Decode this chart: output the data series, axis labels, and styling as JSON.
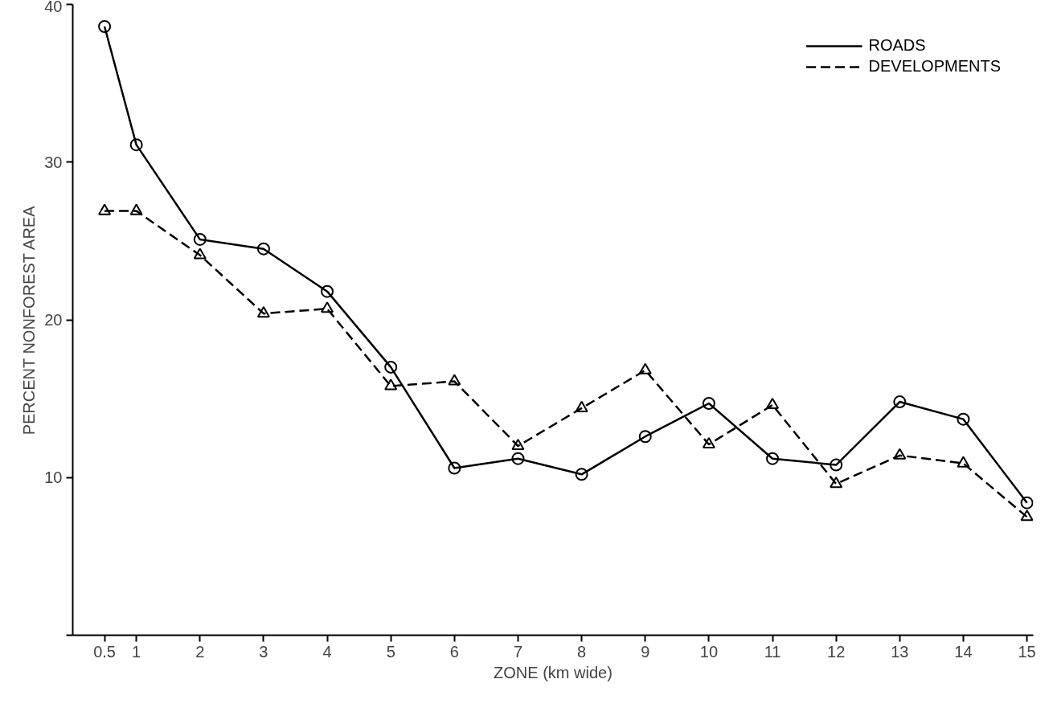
{
  "chart_data": {
    "type": "line",
    "xlabel": "ZONE (km wide)",
    "ylabel": "PERCENT NONFOREST AREA",
    "x": [
      0.5,
      1,
      2,
      3,
      4,
      5,
      6,
      7,
      8,
      9,
      10,
      11,
      12,
      13,
      14,
      15
    ],
    "series": [
      {
        "name": "ROADS",
        "color": "#000000",
        "marker": "circle",
        "line_style": "solid",
        "values": [
          38.6,
          31.1,
          25.1,
          24.5,
          21.8,
          17.0,
          10.6,
          11.2,
          10.2,
          12.6,
          14.7,
          11.2,
          10.8,
          14.8,
          13.7,
          8.4
        ]
      },
      {
        "name": "DEVELOPMENTS",
        "color": "#000000",
        "marker": "triangle",
        "line_style": "dashed",
        "values": [
          26.9,
          26.9,
          24.1,
          20.4,
          20.7,
          15.8,
          16.1,
          12.0,
          14.4,
          16.8,
          12.1,
          14.6,
          9.6,
          11.4,
          10.9,
          7.5
        ]
      }
    ],
    "xlim": [
      0,
      15.1
    ],
    "ylim": [
      0,
      40
    ],
    "xticks": [
      0.5,
      1,
      2,
      3,
      4,
      5,
      6,
      7,
      8,
      9,
      10,
      11,
      12,
      13,
      14,
      15
    ],
    "yticks": [
      {
        "value": 0,
        "label": null
      },
      10,
      20,
      30,
      40
    ],
    "grid": false,
    "legend": "top right"
  }
}
